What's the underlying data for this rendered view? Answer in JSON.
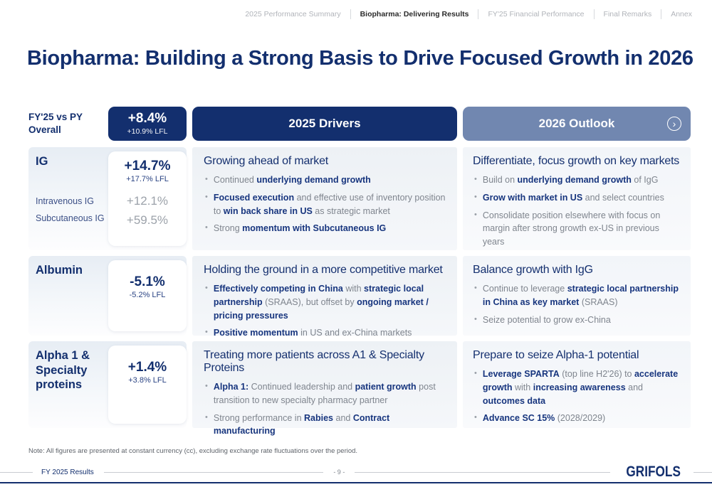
{
  "nav": {
    "items": [
      {
        "label": "2025 Performance Summary",
        "active": false
      },
      {
        "label": "Biopharma: Delivering Results",
        "active": true
      },
      {
        "label": "FY'25 Financial Performance",
        "active": false
      },
      {
        "label": "Final Remarks",
        "active": false
      },
      {
        "label": "Annex",
        "active": false
      }
    ]
  },
  "title": "Biopharma: Building a Strong Basis to Drive Focused Growth in 2026",
  "overall": {
    "label_line1": "FY'25 vs PY",
    "label_line2": "Overall",
    "value": "+8.4%",
    "lfl": "+10.9% LFL"
  },
  "headers": {
    "drivers": "2025 Drivers",
    "outlook": "2026 Outlook",
    "chevron": "›"
  },
  "rows": [
    {
      "name": "IG",
      "value": "+14.7%",
      "lfl": "+17.7% LFL",
      "sub": [
        {
          "label": "Intravenous IG",
          "value": "+12.1%"
        },
        {
          "label": "Subcutaneous IG",
          "value": "+59.5%"
        }
      ],
      "driver": {
        "heading": "Growing ahead of market",
        "bullets": [
          [
            [
              "Continued ",
              0
            ],
            [
              "underlying demand growth",
              1
            ]
          ],
          [
            [
              "Focused execution",
              1
            ],
            [
              " and effective use of inventory position to ",
              0
            ],
            [
              "win back share in US",
              1
            ],
            [
              " as strategic market",
              0
            ]
          ],
          [
            [
              "Strong ",
              0
            ],
            [
              "momentum with Subcutaneous IG",
              1
            ]
          ]
        ]
      },
      "outlook": {
        "heading": "Differentiate, focus growth on key markets",
        "bullets": [
          [
            [
              "Build on ",
              0
            ],
            [
              "underlying demand growth",
              1
            ],
            [
              " of IgG",
              0
            ]
          ],
          [
            [
              "Grow with market in US",
              1
            ],
            [
              " and select countries",
              0
            ]
          ],
          [
            [
              "Consolidate position elsewhere with focus on margin after strong growth ex-US in previous years",
              0
            ]
          ]
        ]
      }
    },
    {
      "name": "Albumin",
      "value": "-5.1%",
      "lfl": "-5.2% LFL",
      "driver": {
        "heading": "Holding the ground in a more competitive market",
        "bullets": [
          [
            [
              "Effectively competing in China",
              1
            ],
            [
              " with ",
              0
            ],
            [
              "strategic local partnership",
              1
            ],
            [
              " (SRAAS), but offset by ",
              0
            ],
            [
              "ongoing market / pricing pressures",
              1
            ]
          ],
          [
            [
              "Positive momentum",
              1
            ],
            [
              " in US and ex-China markets",
              0
            ]
          ]
        ]
      },
      "outlook": {
        "heading": "Balance growth with IgG",
        "bullets": [
          [
            [
              "Continue to leverage ",
              0
            ],
            [
              "strategic local partnership in China as key market",
              1
            ],
            [
              " (SRAAS)",
              0
            ]
          ],
          [
            [
              "Seize potential to grow ex-China",
              0
            ]
          ]
        ]
      }
    },
    {
      "name": "Alpha 1 & Specialty proteins",
      "value": "+1.4%",
      "lfl": "+3.8% LFL",
      "driver": {
        "heading": "Treating more patients across A1 & Specialty Proteins",
        "bullets": [
          [
            [
              "Alpha 1:",
              1
            ],
            [
              " Continued leadership and ",
              0
            ],
            [
              "patient growth",
              1
            ],
            [
              " post transition to new specialty pharmacy partner",
              0
            ]
          ],
          [
            [
              "Strong performance in ",
              0
            ],
            [
              "Rabies",
              1
            ],
            [
              " and ",
              0
            ],
            [
              "Contract manufacturing",
              1
            ]
          ]
        ]
      },
      "outlook": {
        "heading": "Prepare to seize Alpha-1 potential",
        "bullets": [
          [
            [
              "Leverage SPARTA",
              1
            ],
            [
              " (top line H2'26) to ",
              0
            ],
            [
              "accelerate growth",
              1
            ],
            [
              " with ",
              0
            ],
            [
              "increasing awareness",
              1
            ],
            [
              " and ",
              0
            ],
            [
              "outcomes data",
              1
            ]
          ],
          [
            [
              "Advance SC 15%",
              1
            ],
            [
              " (2028/2029)",
              0
            ]
          ]
        ]
      }
    }
  ],
  "note": "Note: All figures are presented at constant currency (cc), excluding exchange rate fluctuations over the period.",
  "footer": {
    "left": "FY 2025 Results",
    "page": "- 9 -",
    "logo": "GRIFOLS"
  },
  "colors": {
    "navy": "#132f6e",
    "slate": "#7187b0",
    "em_blue": "#17357e",
    "body_gray": "#7f858e"
  }
}
